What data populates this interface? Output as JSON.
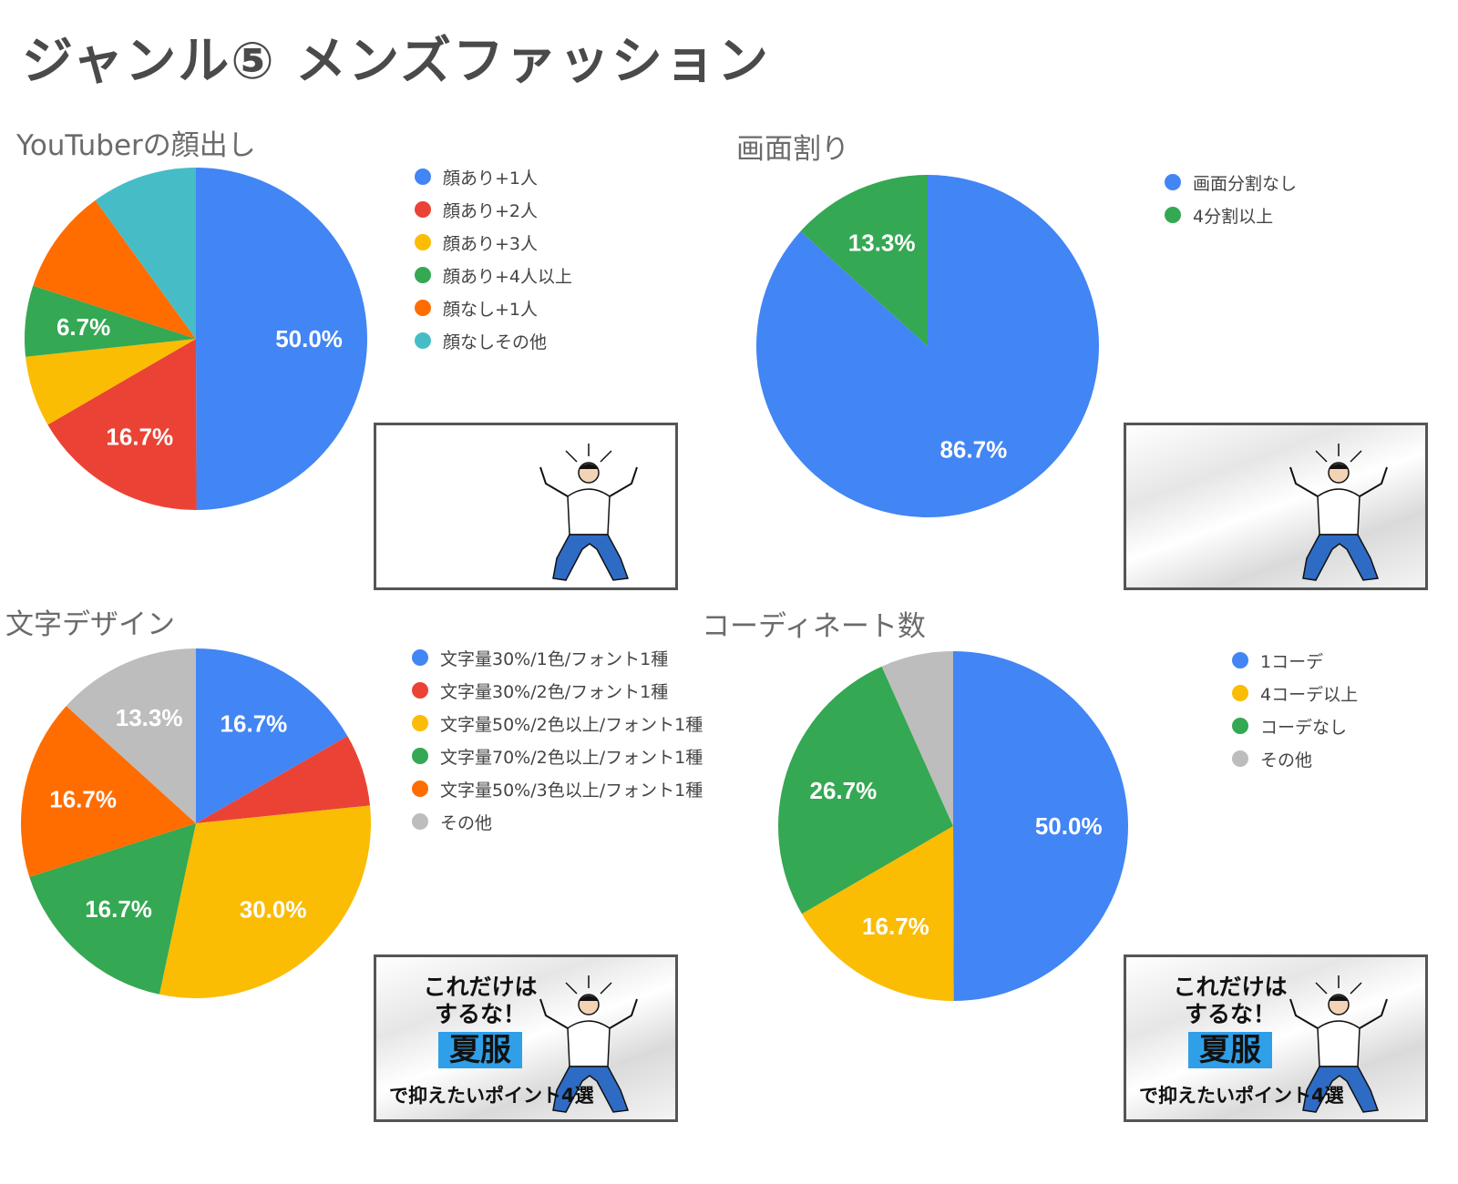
{
  "page_title": "ジャンル⑤ メンズファッション",
  "thumbnail_text": {
    "line1": "これだけは",
    "line2": "するな！",
    "highlight": "夏服",
    "line3": "で抑えたいポイント4選"
  },
  "chart_data": [
    {
      "type": "pie",
      "title": "YouTuberの顔出し",
      "legend_position": "right",
      "categories": [
        "顔あり+1人",
        "顔あり+2人",
        "顔あり+3人",
        "顔あり+4人以上",
        "顔なし+1人",
        "顔なしその他"
      ],
      "values": [
        50.0,
        16.7,
        6.7,
        6.7,
        10.0,
        10.0
      ],
      "labels": [
        "50.0%",
        "16.7%",
        "",
        "6.7%",
        "",
        ""
      ],
      "colors": [
        "#4285f4",
        "#ea4335",
        "#fbbc04",
        "#34a853",
        "#ff6d01",
        "#46bdc6"
      ]
    },
    {
      "type": "pie",
      "title": "画面割り",
      "legend_position": "right",
      "categories": [
        "画面分割なし",
        "4分割以上"
      ],
      "values": [
        86.7,
        13.3
      ],
      "labels": [
        "86.7%",
        "13.3%"
      ],
      "colors": [
        "#4285f4",
        "#34a853"
      ]
    },
    {
      "type": "pie",
      "title": "文字デザイン",
      "legend_position": "right",
      "categories": [
        "文字量30%/1色/フォント1種",
        "文字量30%/2色/フォント1種",
        "文字量50%/2色以上/フォント1種",
        "文字量70%/2色以上/フォント1種",
        "文字量50%/3色以上/フォント1種",
        "その他"
      ],
      "values": [
        16.7,
        6.7,
        30.0,
        16.7,
        16.7,
        13.3
      ],
      "labels": [
        "16.7%",
        "",
        "30.0%",
        "16.7%",
        "16.7%",
        "13.3%"
      ],
      "colors": [
        "#4285f4",
        "#ea4335",
        "#fbbc04",
        "#34a853",
        "#ff6d01",
        "#bdbdbd"
      ]
    },
    {
      "type": "pie",
      "title": "コーディネート数",
      "legend_position": "right",
      "categories": [
        "1コーデ",
        "4コーデ以上",
        "コーデなし",
        "その他"
      ],
      "values": [
        50.0,
        16.7,
        26.7,
        6.7
      ],
      "labels": [
        "50.0%",
        "16.7%",
        "26.7%",
        ""
      ],
      "colors": [
        "#4285f4",
        "#fbbc04",
        "#34a853",
        "#bdbdbd"
      ]
    }
  ]
}
